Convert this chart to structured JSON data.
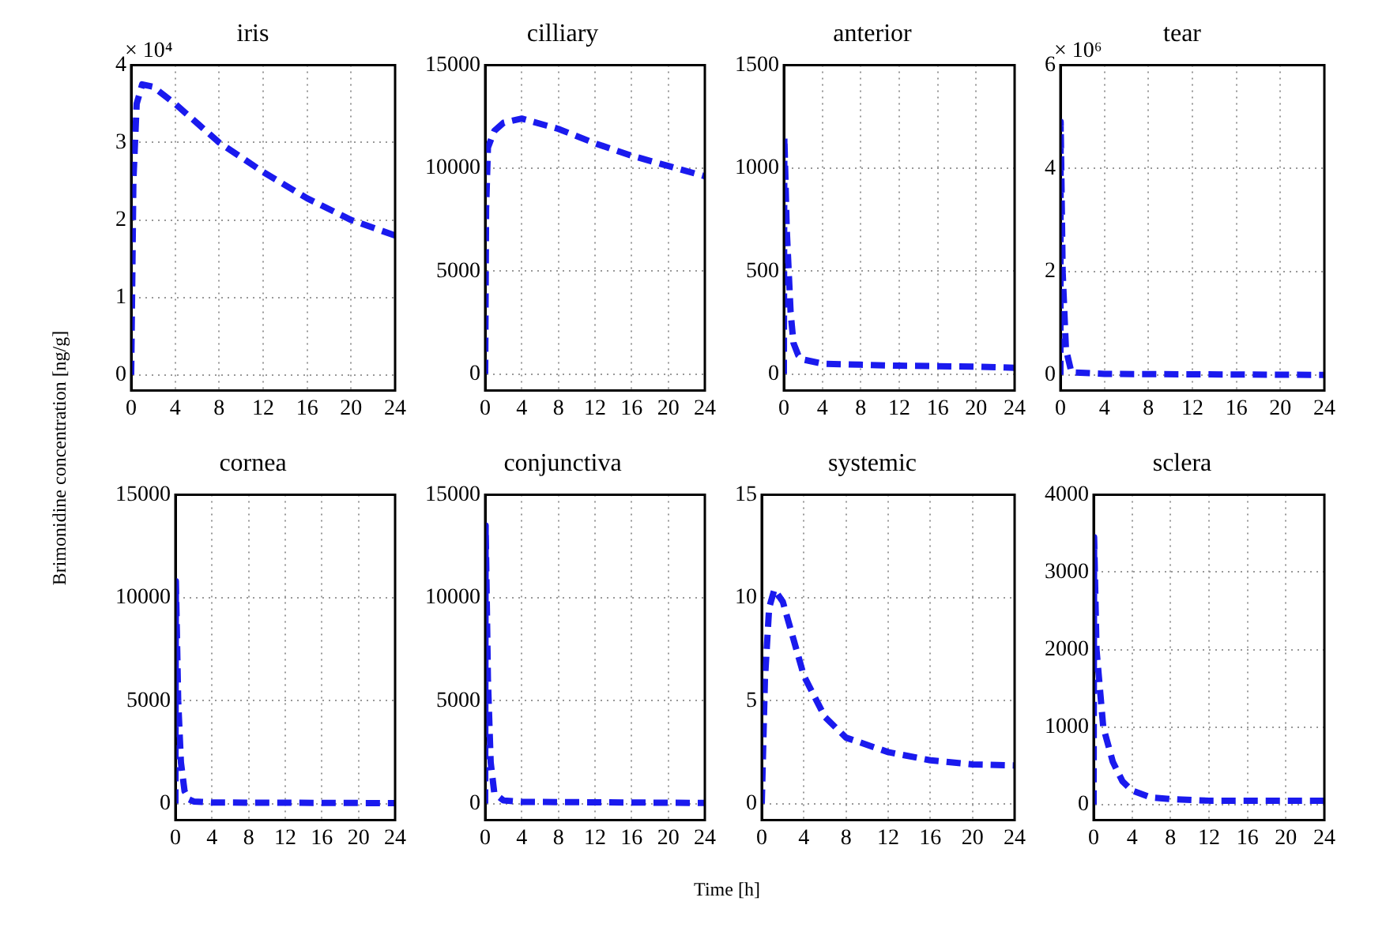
{
  "chart_data": [
    {
      "type": "line",
      "title": "iris",
      "ylabel": "Brimonidine concentration [ng/g]",
      "annotations": [
        "× 10⁴"
      ],
      "xlim": [
        0,
        24
      ],
      "xticks": [
        0,
        4,
        8,
        12,
        16,
        20,
        24
      ],
      "ylim": [
        -0.2,
        4
      ],
      "yticks": [
        0,
        1,
        2,
        3,
        4
      ],
      "grid": true,
      "legend": false,
      "marker": "none",
      "line_style": "dashed",
      "series": [
        {
          "color": "#1a1aee",
          "x": [
            0,
            0.2,
            0.5,
            1,
            2,
            4,
            8,
            12,
            16,
            20,
            24
          ],
          "values": [
            0,
            2.5,
            3.5,
            3.75,
            3.72,
            3.5,
            3.0,
            2.62,
            2.28,
            2.0,
            1.8
          ]
        }
      ]
    },
    {
      "type": "line",
      "title": "cilliary",
      "xlim": [
        0,
        24
      ],
      "xticks": [
        0,
        4,
        8,
        12,
        16,
        20,
        24
      ],
      "ylim": [
        -800,
        15000
      ],
      "yticks": [
        0,
        5000,
        10000,
        15000
      ],
      "grid": true,
      "legend": false,
      "marker": "none",
      "line_style": "dashed",
      "series": [
        {
          "color": "#1a1aee",
          "x": [
            0,
            0.1,
            0.3,
            1,
            2,
            4,
            8,
            12,
            16,
            20,
            24
          ],
          "values": [
            0,
            8000,
            11000,
            11800,
            12200,
            12400,
            11900,
            11200,
            10600,
            10100,
            9600
          ]
        }
      ]
    },
    {
      "type": "line",
      "title": "anterior",
      "xlim": [
        0,
        24
      ],
      "xticks": [
        0,
        4,
        8,
        12,
        16,
        20,
        24
      ],
      "ylim": [
        -80,
        1500
      ],
      "yticks": [
        0,
        500,
        1000,
        1500
      ],
      "grid": true,
      "legend": false,
      "marker": "none",
      "line_style": "dashed",
      "series": [
        {
          "color": "#1a1aee",
          "x": [
            0,
            0.05,
            0.3,
            0.7,
            1,
            1.5,
            2,
            4,
            8,
            12,
            16,
            20,
            24
          ],
          "values": [
            0,
            1150,
            700,
            300,
            150,
            90,
            70,
            50,
            45,
            40,
            38,
            35,
            30
          ]
        }
      ]
    },
    {
      "type": "line",
      "title": "tear",
      "annotations": [
        "× 10⁶"
      ],
      "xlim": [
        0,
        24
      ],
      "xticks": [
        0,
        4,
        8,
        12,
        16,
        20,
        24
      ],
      "ylim": [
        -0.3,
        6
      ],
      "yticks": [
        0,
        2,
        4,
        6
      ],
      "grid": true,
      "legend": false,
      "marker": "none",
      "line_style": "dashed",
      "series": [
        {
          "color": "#1a1aee",
          "x": [
            0,
            0.02,
            0.2,
            0.5,
            1,
            4,
            24
          ],
          "values": [
            0,
            4.9,
            2,
            0.5,
            0.05,
            0.02,
            0
          ]
        }
      ]
    },
    {
      "type": "line",
      "title": "cornea",
      "xlim": [
        0,
        24
      ],
      "xticks": [
        0,
        4,
        8,
        12,
        16,
        20,
        24
      ],
      "ylim": [
        -800,
        15000
      ],
      "yticks": [
        0,
        5000,
        10000,
        15000
      ],
      "grid": true,
      "legend": false,
      "marker": "none",
      "line_style": "dashed",
      "series": [
        {
          "color": "#1a1aee",
          "x": [
            0,
            0.05,
            0.3,
            0.6,
            1,
            1.5,
            2,
            4,
            24
          ],
          "values": [
            0,
            10800,
            5000,
            2000,
            600,
            200,
            100,
            50,
            20
          ]
        }
      ]
    },
    {
      "type": "line",
      "title": "conjunctiva",
      "xlabel": "Time [h]",
      "xlim": [
        0,
        24
      ],
      "xticks": [
        0,
        4,
        8,
        12,
        16,
        20,
        24
      ],
      "ylim": [
        -800,
        15000
      ],
      "yticks": [
        0,
        5000,
        10000,
        15000
      ],
      "grid": true,
      "legend": false,
      "marker": "none",
      "line_style": "dashed",
      "series": [
        {
          "color": "#1a1aee",
          "x": [
            0,
            0.05,
            0.3,
            0.6,
            1,
            2,
            4,
            24
          ],
          "values": [
            0,
            13500,
            6000,
            2000,
            500,
            150,
            80,
            30
          ]
        }
      ]
    },
    {
      "type": "line",
      "title": "systemic",
      "xlim": [
        0,
        24
      ],
      "xticks": [
        0,
        4,
        8,
        12,
        16,
        20,
        24
      ],
      "ylim": [
        -0.8,
        15
      ],
      "yticks": [
        0,
        5,
        10,
        15
      ],
      "grid": true,
      "legend": false,
      "marker": "none",
      "line_style": "dashed",
      "series": [
        {
          "color": "#1a1aee",
          "x": [
            0,
            0.3,
            0.7,
            1.2,
            2,
            3,
            4,
            6,
            8,
            12,
            16,
            20,
            24
          ],
          "values": [
            0,
            6,
            9.5,
            10.4,
            9.8,
            8,
            6.2,
            4.2,
            3.2,
            2.5,
            2.1,
            1.9,
            1.85
          ]
        }
      ]
    },
    {
      "type": "line",
      "title": "sclera",
      "xlim": [
        0,
        24
      ],
      "xticks": [
        0,
        4,
        8,
        12,
        16,
        20,
        24
      ],
      "ylim": [
        -200,
        4000
      ],
      "yticks": [
        0,
        1000,
        2000,
        3000,
        4000
      ],
      "grid": true,
      "legend": false,
      "marker": "none",
      "line_style": "dashed",
      "series": [
        {
          "color": "#1a1aee",
          "x": [
            0,
            0.05,
            0.3,
            1,
            2,
            3,
            4,
            6,
            8,
            12,
            16,
            24
          ],
          "values": [
            0,
            3450,
            2000,
            1000,
            550,
            300,
            180,
            90,
            70,
            50,
            50,
            50
          ]
        }
      ]
    }
  ]
}
